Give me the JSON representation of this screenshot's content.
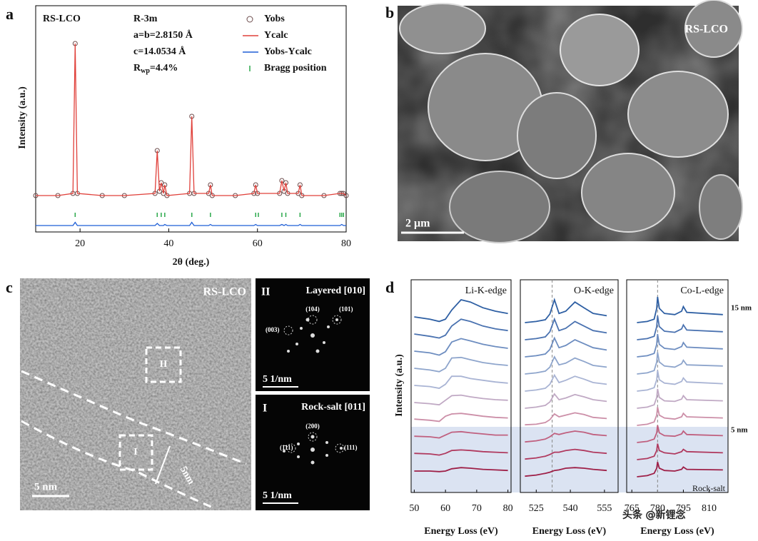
{
  "chart_data": [
    {
      "type": "line",
      "label": "a",
      "sample": "RS-LCO",
      "annotations": [
        "R-3m",
        "a=b=2.8150 Å",
        "c=14.0534 Å"
      ],
      "rwp": {
        "symbol": "R",
        "subscript": "wp",
        "value": "=4.4%"
      },
      "xlabel": "2θ (deg.)",
      "ylabel": "Intensity (a.u.)",
      "xlim": [
        10,
        80
      ],
      "xticks": [
        20,
        40,
        60,
        80
      ],
      "ylim": [
        0,
        100
      ],
      "legend": "upper right",
      "x": [
        10,
        15,
        18.4,
        18.9,
        19.4,
        25,
        30,
        36.9,
        37.4,
        37.9,
        38.3,
        38.8,
        39.1,
        39.6,
        44.7,
        45.2,
        45.7,
        49.0,
        49.4,
        49.8,
        55,
        59.2,
        59.6,
        60.0,
        65.0,
        65.5,
        66.0,
        66.4,
        66.8,
        69.2,
        69.6,
        70.0,
        75,
        78.6,
        79,
        79.4,
        80
      ],
      "series": [
        {
          "name": "Yobs",
          "color": "#6b4a4a",
          "style": "circle",
          "values": [
            17,
            17,
            18,
            88,
            18,
            17,
            17,
            18,
            38,
            19,
            23,
            18,
            22,
            17,
            18,
            54,
            18,
            18,
            22,
            17,
            17,
            18,
            22,
            18,
            18,
            24,
            19,
            23,
            18,
            18,
            22,
            17,
            17,
            18,
            18,
            18,
            17
          ]
        },
        {
          "name": "Ycalc",
          "color": "#e0403a",
          "style": "line",
          "values": [
            17,
            17,
            18,
            88,
            18,
            17,
            17,
            18,
            38,
            19,
            23,
            18,
            22,
            17,
            18,
            54,
            18,
            18,
            22,
            17,
            17,
            18,
            22,
            18,
            18,
            24,
            19,
            23,
            18,
            18,
            22,
            17,
            17,
            18,
            18,
            18,
            17
          ]
        },
        {
          "name": "Yobs-Ycalc",
          "color": "#1f5fd6",
          "style": "line",
          "values": [
            3,
            3,
            3,
            4.5,
            3,
            3,
            3,
            3,
            4,
            3,
            3,
            3,
            3.5,
            3,
            3,
            4.5,
            3,
            3,
            3.5,
            3,
            3,
            3,
            3.5,
            3,
            3,
            3.5,
            3,
            3.5,
            3,
            3,
            3.5,
            3,
            3,
            3,
            3.5,
            3,
            3
          ]
        },
        {
          "name": "Bragg position",
          "color": "#2aa84a",
          "style": "tick",
          "x": [
            18.9,
            37.4,
            38.3,
            39.1,
            45.2,
            49.4,
            59.6,
            60.2,
            65.5,
            66.4,
            69.6,
            78.6,
            79,
            79.4
          ],
          "values": [
            8,
            8,
            8,
            8,
            8,
            8,
            8,
            8,
            8,
            8,
            8,
            8,
            8,
            8
          ]
        }
      ]
    },
    {
      "type": "line",
      "title": "Li-K-edge",
      "xlabel": "Energy Loss (eV)",
      "xlim": [
        49,
        81
      ],
      "xticks": [
        50,
        60,
        70,
        80
      ],
      "x": [
        50,
        55,
        58,
        60,
        62,
        65,
        68,
        72,
        76,
        80
      ],
      "series": [
        {
          "values": [
            2.0,
            1.6,
            1.2,
            1.6,
            3.2,
            5.0,
            4.6,
            3.6,
            3.0,
            2.6
          ]
        },
        {
          "values": [
            2.0,
            1.6,
            1.3,
            1.8,
            3.4,
            4.6,
            4.2,
            3.4,
            2.9,
            2.6
          ]
        },
        {
          "values": [
            2.0,
            1.7,
            1.3,
            1.9,
            3.6,
            4.2,
            3.8,
            3.2,
            2.8,
            2.5
          ]
        },
        {
          "values": [
            2.0,
            1.7,
            1.4,
            2.0,
            3.8,
            3.9,
            3.5,
            3.0,
            2.7,
            2.5
          ]
        },
        {
          "values": [
            2.0,
            1.8,
            1.5,
            2.2,
            3.6,
            3.6,
            3.2,
            2.9,
            2.6,
            2.4
          ]
        },
        {
          "values": [
            2.0,
            1.8,
            1.6,
            2.4,
            3.2,
            3.3,
            3.0,
            2.7,
            2.5,
            2.4
          ]
        },
        {
          "values": [
            2.1,
            1.9,
            1.7,
            2.6,
            3.0,
            3.1,
            2.9,
            2.6,
            2.4,
            2.3
          ]
        },
        {
          "values": [
            2.1,
            2.0,
            1.8,
            2.3,
            2.8,
            2.9,
            2.7,
            2.5,
            2.3,
            2.3
          ]
        },
        {
          "values": [
            2.1,
            2.0,
            1.8,
            2.1,
            2.6,
            2.7,
            2.6,
            2.4,
            2.3,
            2.2
          ]
        },
        {
          "values": [
            2.0,
            2.0,
            1.9,
            2.0,
            2.4,
            2.6,
            2.5,
            2.3,
            2.2,
            2.1
          ]
        }
      ]
    },
    {
      "type": "line",
      "title": "O-K-edge",
      "xlabel": "Energy Loss (eV)",
      "xlim": [
        518,
        561
      ],
      "xticks": [
        525,
        540,
        555
      ],
      "guide": 532,
      "x": [
        520,
        525,
        529,
        531,
        533,
        535,
        538,
        542,
        546,
        550,
        556
      ],
      "series": [
        {
          "values": [
            1.0,
            1.2,
            1.5,
            2.5,
            5.0,
            2.6,
            3.0,
            4.6,
            3.6,
            2.6,
            2.2
          ]
        },
        {
          "values": [
            1.0,
            1.2,
            1.5,
            2.4,
            4.6,
            2.6,
            3.0,
            4.2,
            3.4,
            2.6,
            2.2
          ]
        },
        {
          "values": [
            1.0,
            1.2,
            1.5,
            2.3,
            4.3,
            2.6,
            3.0,
            4.0,
            3.3,
            2.6,
            2.2
          ]
        },
        {
          "values": [
            1.0,
            1.2,
            1.5,
            2.2,
            4.0,
            2.6,
            2.9,
            3.8,
            3.2,
            2.5,
            2.2
          ]
        },
        {
          "values": [
            1.0,
            1.2,
            1.5,
            2.2,
            3.8,
            2.5,
            2.9,
            3.6,
            3.1,
            2.5,
            2.2
          ]
        },
        {
          "values": [
            1.0,
            1.2,
            1.5,
            2.1,
            3.5,
            2.5,
            2.8,
            3.4,
            3.0,
            2.5,
            2.2
          ]
        },
        {
          "values": [
            1.1,
            1.2,
            1.5,
            2.0,
            3.0,
            2.5,
            2.8,
            3.2,
            2.9,
            2.4,
            2.2
          ]
        },
        {
          "values": [
            1.1,
            1.3,
            1.6,
            2.0,
            2.6,
            2.4,
            2.7,
            3.0,
            2.8,
            2.4,
            2.2
          ]
        },
        {
          "values": [
            1.1,
            1.3,
            1.6,
            1.9,
            2.3,
            2.3,
            2.6,
            2.8,
            2.6,
            2.3,
            2.1
          ]
        },
        {
          "values": [
            1.1,
            1.3,
            1.6,
            1.8,
            2.1,
            2.2,
            2.5,
            2.6,
            2.5,
            2.3,
            2.1
          ]
        }
      ]
    },
    {
      "type": "line",
      "title": "Co-L-edge",
      "xlabel": "Energy Loss (eV)",
      "xlim": [
        762,
        821
      ],
      "xticks": [
        765,
        780,
        795,
        810
      ],
      "guide": 780,
      "x": [
        768,
        774,
        778,
        779.5,
        780,
        781,
        784,
        790,
        794,
        795,
        797,
        818
      ],
      "series": [
        {
          "values": [
            1.0,
            1.2,
            1.6,
            3.5,
            5.5,
            3.5,
            2.6,
            2.4,
            3.0,
            3.8,
            2.8,
            2.4
          ]
        },
        {
          "values": [
            1.0,
            1.2,
            1.6,
            3.3,
            5.2,
            3.3,
            2.5,
            2.3,
            2.9,
            3.6,
            2.7,
            2.4
          ]
        },
        {
          "values": [
            1.0,
            1.2,
            1.6,
            3.2,
            5.0,
            3.2,
            2.5,
            2.3,
            2.8,
            3.5,
            2.7,
            2.4
          ]
        },
        {
          "values": [
            1.0,
            1.2,
            1.6,
            3.1,
            4.8,
            3.1,
            2.4,
            2.2,
            2.8,
            3.4,
            2.6,
            2.4
          ]
        },
        {
          "values": [
            1.0,
            1.2,
            1.6,
            3.0,
            4.6,
            3.0,
            2.4,
            2.2,
            2.7,
            3.3,
            2.6,
            2.3
          ]
        },
        {
          "values": [
            1.0,
            1.2,
            1.6,
            2.9,
            4.4,
            2.9,
            2.3,
            2.2,
            2.6,
            3.2,
            2.5,
            2.3
          ]
        },
        {
          "values": [
            1.0,
            1.2,
            1.6,
            2.8,
            4.2,
            2.8,
            2.3,
            2.1,
            2.5,
            3.1,
            2.5,
            2.3
          ]
        },
        {
          "values": [
            1.0,
            1.2,
            1.6,
            2.7,
            4.0,
            2.7,
            2.2,
            2.1,
            2.5,
            3.0,
            2.4,
            2.2
          ]
        },
        {
          "values": [
            1.0,
            1.2,
            1.6,
            2.6,
            3.8,
            2.6,
            2.2,
            2.0,
            2.4,
            2.8,
            2.4,
            2.2
          ]
        },
        {
          "values": [
            1.0,
            1.2,
            1.6,
            2.5,
            3.6,
            2.5,
            2.1,
            2.0,
            2.3,
            2.7,
            2.3,
            2.2
          ]
        }
      ]
    }
  ],
  "panel_b": {
    "label": "b",
    "sample": "RS-LCO",
    "scale_bar": "2 μm"
  },
  "panel_c": {
    "label": "c",
    "sample": "RS-LCO",
    "scale_bar": "5 nm",
    "region_ii": "II",
    "region_i": "I",
    "thickness": "5nm",
    "inset_ii": {
      "label": "II",
      "title": "Layered [010]",
      "spots": [
        "(104)",
        "(101)",
        "(003)"
      ],
      "scale_bar": "5 1/nm"
    },
    "inset_i": {
      "label": "I",
      "title": "Rock-salt [011]",
      "spots": [
        "(200)",
        "(1̄11)",
        "(111)"
      ],
      "scale_bar": "5 1/nm"
    }
  },
  "panel_d": {
    "label": "d",
    "ylabel": "Intensity (a.u.)",
    "top_label": "15 nm",
    "mid_label": "5 nm",
    "bottom_label": "Rock-salt",
    "colors": [
      "#2e5fa3",
      "#4a72b0",
      "#6d8dc0",
      "#8ea5cc",
      "#a9b4d4",
      "#c0a9c4",
      "#cc8fa8",
      "#c0607f",
      "#b03a5f",
      "#9e1f47"
    ]
  },
  "watermark": "头条 @新锂念"
}
